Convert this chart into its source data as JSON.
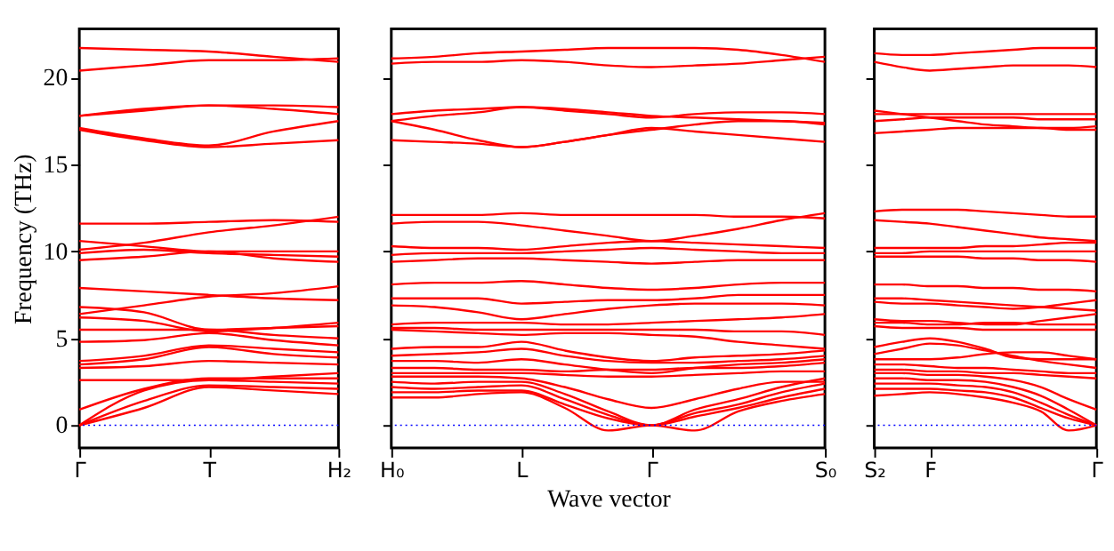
{
  "chart_data": [
    {
      "type": "line",
      "ylabel": "Frequency (THz)",
      "categories": [
        "Γ",
        null,
        "T",
        null,
        "H₂"
      ],
      "ylim": [
        -1.3,
        22.8
      ],
      "yticks": [
        0,
        5,
        10,
        15,
        20
      ],
      "grid": false,
      "legend": false,
      "line_style": "solid",
      "marker": "none",
      "ref_lines": [
        {
          "axis": "y",
          "value": 0,
          "color": "#0000ff",
          "line_style": "dotted"
        }
      ],
      "series": [
        {
          "color": "#ff0000",
          "values": [
            0,
            1.0,
            2.2,
            2.0,
            1.8
          ]
        },
        {
          "color": "#ff0000",
          "values": [
            0,
            1.4,
            2.3,
            2.2,
            2.1
          ]
        },
        {
          "color": "#ff0000",
          "values": [
            0,
            2.0,
            2.6,
            2.5,
            2.4
          ]
        },
        {
          "color": "#ff0000",
          "values": [
            0.9,
            2.1,
            2.7,
            2.7,
            2.7
          ]
        },
        {
          "color": "#ff0000",
          "values": [
            2.6,
            2.6,
            2.6,
            2.8,
            3.0
          ]
        },
        {
          "color": "#ff0000",
          "values": [
            3.3,
            3.4,
            3.7,
            3.6,
            3.5
          ]
        },
        {
          "color": "#ff0000",
          "values": [
            3.5,
            3.8,
            4.5,
            4.1,
            3.9
          ]
        },
        {
          "color": "#ff0000",
          "values": [
            3.7,
            4.0,
            4.6,
            4.4,
            4.2
          ]
        },
        {
          "color": "#ff0000",
          "values": [
            4.8,
            4.9,
            5.3,
            4.9,
            4.6
          ]
        },
        {
          "color": "#ff0000",
          "values": [
            5.5,
            5.5,
            5.5,
            5.2,
            5.0
          ]
        },
        {
          "color": "#ff0000",
          "values": [
            6.4,
            6.9,
            7.4,
            7.6,
            8.0
          ]
        },
        {
          "color": "#ff0000",
          "values": [
            6.8,
            6.5,
            5.5,
            5.6,
            5.7
          ]
        },
        {
          "color": "#ff0000",
          "values": [
            6.2,
            6.0,
            5.4,
            5.6,
            5.9
          ]
        },
        {
          "color": "#ff0000",
          "values": [
            7.9,
            7.7,
            7.5,
            7.3,
            7.2
          ]
        },
        {
          "color": "#ff0000",
          "values": [
            9.5,
            9.7,
            10.0,
            9.6,
            9.4
          ]
        },
        {
          "color": "#ff0000",
          "values": [
            10.1,
            10.5,
            11.1,
            11.5,
            12.0
          ]
        },
        {
          "color": "#ff0000",
          "values": [
            10.6,
            10.3,
            10.0,
            10.0,
            10.0
          ]
        },
        {
          "color": "#ff0000",
          "values": [
            9.9,
            10.1,
            9.9,
            9.8,
            9.7
          ]
        },
        {
          "color": "#ff0000",
          "values": [
            11.6,
            11.6,
            11.7,
            11.8,
            11.7
          ]
        },
        {
          "color": "#ff0000",
          "values": [
            17.0,
            16.4,
            16.0,
            16.2,
            16.4
          ]
        },
        {
          "color": "#ff0000",
          "values": [
            17.1,
            16.5,
            16.1,
            16.9,
            17.5
          ]
        },
        {
          "color": "#ff0000",
          "values": [
            17.8,
            18.1,
            18.4,
            18.2,
            17.9
          ]
        },
        {
          "color": "#ff0000",
          "values": [
            17.8,
            18.2,
            18.4,
            18.4,
            18.3
          ]
        },
        {
          "color": "#ff0000",
          "values": [
            20.4,
            20.7,
            21.0,
            21.0,
            21.1
          ]
        },
        {
          "color": "#ff0000",
          "values": [
            21.7,
            21.6,
            21.5,
            21.2,
            20.9
          ]
        }
      ]
    },
    {
      "type": "line",
      "xlabel": "Wave vector",
      "categories": [
        "H₀",
        null,
        null,
        "L",
        null,
        null,
        "Γ",
        null,
        null,
        null,
        "S₀"
      ],
      "ylim": [
        -1.3,
        22.8
      ],
      "yticks": [
        {
          "value": 0,
          "label": null
        },
        {
          "value": 5,
          "label": null
        },
        {
          "value": 10,
          "label": null
        },
        {
          "value": 15,
          "label": null
        },
        {
          "value": 20,
          "label": null
        }
      ],
      "tick_labels": "x",
      "grid": false,
      "legend": false,
      "line_style": "solid",
      "marker": "none",
      "ref_lines": [
        {
          "axis": "y",
          "value": 0,
          "color": "#0000ff",
          "line_style": "dotted"
        }
      ],
      "series": [
        {
          "color": "#ff0000",
          "values": [
            1.6,
            1.6,
            1.8,
            1.9,
            1.0,
            -0.3,
            0,
            -0.3,
            0.8,
            1.4,
            1.8
          ]
        },
        {
          "color": "#ff0000",
          "values": [
            1.9,
            1.9,
            2.0,
            2.0,
            1.2,
            0.4,
            0,
            0.5,
            1.0,
            1.6,
            2.1
          ]
        },
        {
          "color": "#ff0000",
          "values": [
            2.2,
            2.1,
            2.2,
            2.3,
            1.5,
            0.6,
            0,
            0.7,
            1.2,
            1.9,
            2.4
          ]
        },
        {
          "color": "#ff0000",
          "values": [
            2.5,
            2.4,
            2.5,
            2.5,
            1.8,
            0.8,
            0,
            0.9,
            1.5,
            2.2,
            2.7
          ]
        },
        {
          "color": "#ff0000",
          "values": [
            2.8,
            2.8,
            2.8,
            2.7,
            2.2,
            1.5,
            1.0,
            1.5,
            2.1,
            2.5,
            2.5
          ]
        },
        {
          "color": "#ff0000",
          "values": [
            3.0,
            3.0,
            3.0,
            3.0,
            2.9,
            2.8,
            2.8,
            2.9,
            3.0,
            3.1,
            3.1
          ]
        },
        {
          "color": "#ff0000",
          "values": [
            3.3,
            3.3,
            3.2,
            3.2,
            3.1,
            3.2,
            3.2,
            3.3,
            3.3,
            3.4,
            3.6
          ]
        },
        {
          "color": "#ff0000",
          "values": [
            3.7,
            3.7,
            3.6,
            3.8,
            3.5,
            3.2,
            3.0,
            3.3,
            3.5,
            3.6,
            3.8
          ]
        },
        {
          "color": "#ff0000",
          "values": [
            4.0,
            4.1,
            4.2,
            4.4,
            4.0,
            3.7,
            3.6,
            3.6,
            3.7,
            3.8,
            4.0
          ]
        },
        {
          "color": "#ff0000",
          "values": [
            4.4,
            4.5,
            4.5,
            4.8,
            4.3,
            3.9,
            3.7,
            3.9,
            4.0,
            4.1,
            4.3
          ]
        },
        {
          "color": "#ff0000",
          "values": [
            5.5,
            5.4,
            5.3,
            5.2,
            5.3,
            5.3,
            5.2,
            5.1,
            4.8,
            4.6,
            4.4
          ]
        },
        {
          "color": "#ff0000",
          "values": [
            5.6,
            5.6,
            5.5,
            5.5,
            5.5,
            5.5,
            5.5,
            5.5,
            5.4,
            5.4,
            5.2
          ]
        },
        {
          "color": "#ff0000",
          "values": [
            5.8,
            5.9,
            5.9,
            5.9,
            5.8,
            5.8,
            5.9,
            6.0,
            6.1,
            6.2,
            6.4
          ]
        },
        {
          "color": "#ff0000",
          "values": [
            6.9,
            6.8,
            6.5,
            6.1,
            6.4,
            6.7,
            6.9,
            7.0,
            7.0,
            7.0,
            6.9
          ]
        },
        {
          "color": "#ff0000",
          "values": [
            7.3,
            7.3,
            7.3,
            7.0,
            7.1,
            7.2,
            7.2,
            7.3,
            7.5,
            7.5,
            7.5
          ]
        },
        {
          "color": "#ff0000",
          "values": [
            8.1,
            8.2,
            8.2,
            8.3,
            8.1,
            7.9,
            7.8,
            7.9,
            8.1,
            8.2,
            8.2
          ]
        },
        {
          "color": "#ff0000",
          "values": [
            9.4,
            9.5,
            9.6,
            9.6,
            9.5,
            9.4,
            9.3,
            9.4,
            9.5,
            9.5,
            9.5
          ]
        },
        {
          "color": "#ff0000",
          "values": [
            9.8,
            9.9,
            9.9,
            9.9,
            10.0,
            10.1,
            10.2,
            10.1,
            10.0,
            9.9,
            9.9
          ]
        },
        {
          "color": "#ff0000",
          "values": [
            10.3,
            10.2,
            10.2,
            10.1,
            10.3,
            10.5,
            10.6,
            10.5,
            10.4,
            10.3,
            10.2
          ]
        },
        {
          "color": "#ff0000",
          "values": [
            11.6,
            11.7,
            11.7,
            11.5,
            11.2,
            10.9,
            10.6,
            10.9,
            11.3,
            11.8,
            12.2
          ]
        },
        {
          "color": "#ff0000",
          "values": [
            12.1,
            12.1,
            12.1,
            12.2,
            12.1,
            12.1,
            12.1,
            12.1,
            12.0,
            12.0,
            11.9
          ]
        },
        {
          "color": "#ff0000",
          "values": [
            16.4,
            16.3,
            16.2,
            16.0,
            16.3,
            16.7,
            17.0,
            17.3,
            17.5,
            17.5,
            17.3
          ]
        },
        {
          "color": "#ff0000",
          "values": [
            17.5,
            17.0,
            16.4,
            16.0,
            16.3,
            16.7,
            17.1,
            16.9,
            16.7,
            16.5,
            16.3
          ]
        },
        {
          "color": "#ff0000",
          "values": [
            17.5,
            17.8,
            18.0,
            18.3,
            18.2,
            18.0,
            17.8,
            17.7,
            17.6,
            17.5,
            17.4
          ]
        },
        {
          "color": "#ff0000",
          "values": [
            17.9,
            18.1,
            18.2,
            18.3,
            18.1,
            17.9,
            17.7,
            17.9,
            18.0,
            18.0,
            17.9
          ]
        },
        {
          "color": "#ff0000",
          "values": [
            20.8,
            20.9,
            20.9,
            21.0,
            20.9,
            20.7,
            20.6,
            20.7,
            20.8,
            21.0,
            21.2
          ]
        },
        {
          "color": "#ff0000",
          "values": [
            21.1,
            21.2,
            21.4,
            21.5,
            21.6,
            21.7,
            21.7,
            21.7,
            21.6,
            21.3,
            20.9
          ]
        }
      ]
    },
    {
      "type": "line",
      "categories": [
        "S₂",
        null,
        "F",
        null,
        null,
        null,
        null,
        null,
        "Γ"
      ],
      "ylim": [
        -1.3,
        22.8
      ],
      "yticks": [
        {
          "value": 0,
          "label": null
        },
        {
          "value": 5,
          "label": null
        },
        {
          "value": 10,
          "label": null
        },
        {
          "value": 15,
          "label": null
        },
        {
          "value": 20,
          "label": null
        }
      ],
      "tick_labels": "x",
      "grid": false,
      "legend": false,
      "line_style": "solid",
      "marker": "none",
      "ref_lines": [
        {
          "axis": "y",
          "value": 0,
          "color": "#0000ff",
          "line_style": "dotted"
        }
      ],
      "series": [
        {
          "color": "#ff0000",
          "values": [
            1.7,
            1.8,
            1.9,
            1.8,
            1.6,
            1.3,
            0.8,
            -0.3,
            0
          ]
        },
        {
          "color": "#ff0000",
          "values": [
            2.1,
            2.1,
            2.1,
            2.0,
            1.9,
            1.6,
            1.0,
            0.4,
            0
          ]
        },
        {
          "color": "#ff0000",
          "values": [
            2.4,
            2.4,
            2.4,
            2.3,
            2.2,
            1.9,
            1.3,
            0.6,
            0
          ]
        },
        {
          "color": "#ff0000",
          "values": [
            2.7,
            2.7,
            2.6,
            2.6,
            2.5,
            2.2,
            1.7,
            0.9,
            0
          ]
        },
        {
          "color": "#ff0000",
          "values": [
            3.0,
            3.0,
            2.9,
            2.9,
            2.8,
            2.6,
            2.2,
            1.5,
            0.9
          ]
        },
        {
          "color": "#ff0000",
          "values": [
            3.2,
            3.2,
            3.1,
            3.1,
            3.0,
            3.0,
            2.9,
            2.8,
            2.7
          ]
        },
        {
          "color": "#ff0000",
          "values": [
            3.5,
            3.5,
            3.4,
            3.3,
            3.3,
            3.2,
            3.1,
            3.0,
            3.0
          ]
        },
        {
          "color": "#ff0000",
          "values": [
            3.8,
            3.8,
            3.8,
            3.9,
            4.1,
            4.2,
            4.2,
            4.0,
            3.8
          ]
        },
        {
          "color": "#ff0000",
          "values": [
            4.1,
            4.4,
            4.7,
            4.6,
            4.3,
            4.0,
            3.7,
            3.5,
            3.3
          ]
        },
        {
          "color": "#ff0000",
          "values": [
            4.5,
            4.8,
            5.0,
            4.8,
            4.4,
            3.9,
            3.8,
            3.8,
            3.8
          ]
        },
        {
          "color": "#ff0000",
          "values": [
            5.7,
            5.6,
            5.6,
            5.6,
            5.5,
            5.5,
            5.5,
            5.5,
            5.5
          ]
        },
        {
          "color": "#ff0000",
          "values": [
            5.9,
            5.9,
            5.8,
            5.8,
            5.9,
            5.9,
            5.8,
            5.8,
            5.8
          ]
        },
        {
          "color": "#ff0000",
          "values": [
            6.1,
            6.0,
            6.0,
            5.9,
            5.8,
            5.8,
            6.0,
            6.2,
            6.4
          ]
        },
        {
          "color": "#ff0000",
          "values": [
            7.1,
            7.0,
            7.0,
            6.9,
            6.8,
            6.7,
            6.8,
            7.0,
            7.2
          ]
        },
        {
          "color": "#ff0000",
          "values": [
            7.3,
            7.3,
            7.2,
            7.1,
            7.0,
            6.9,
            6.8,
            6.7,
            6.6
          ]
        },
        {
          "color": "#ff0000",
          "values": [
            8.1,
            8.1,
            8.0,
            8.0,
            7.9,
            7.9,
            7.8,
            7.8,
            7.7
          ]
        },
        {
          "color": "#ff0000",
          "values": [
            9.7,
            9.7,
            9.7,
            9.7,
            9.6,
            9.6,
            9.5,
            9.5,
            9.4
          ]
        },
        {
          "color": "#ff0000",
          "values": [
            9.9,
            9.9,
            10.0,
            10.0,
            10.0,
            10.0,
            10.0,
            10.0,
            10.0
          ]
        },
        {
          "color": "#ff0000",
          "values": [
            10.2,
            10.2,
            10.2,
            10.2,
            10.3,
            10.3,
            10.4,
            10.5,
            10.5
          ]
        },
        {
          "color": "#ff0000",
          "values": [
            11.8,
            11.7,
            11.6,
            11.4,
            11.2,
            11.0,
            10.8,
            10.7,
            10.6
          ]
        },
        {
          "color": "#ff0000",
          "values": [
            12.3,
            12.4,
            12.4,
            12.4,
            12.3,
            12.2,
            12.1,
            12.0,
            12.0
          ]
        },
        {
          "color": "#ff0000",
          "values": [
            16.8,
            16.9,
            17.0,
            17.1,
            17.1,
            17.1,
            17.1,
            17.0,
            17.0
          ]
        },
        {
          "color": "#ff0000",
          "values": [
            17.5,
            17.6,
            17.7,
            17.7,
            17.7,
            17.7,
            17.6,
            17.6,
            17.6
          ]
        },
        {
          "color": "#ff0000",
          "values": [
            17.9,
            17.9,
            17.9,
            17.9,
            17.9,
            17.9,
            17.9,
            17.9,
            17.9
          ]
        },
        {
          "color": "#ff0000",
          "values": [
            18.1,
            17.9,
            17.7,
            17.5,
            17.3,
            17.2,
            17.1,
            17.1,
            17.2
          ]
        },
        {
          "color": "#ff0000",
          "values": [
            20.9,
            20.6,
            20.4,
            20.5,
            20.6,
            20.7,
            20.7,
            20.7,
            20.6
          ]
        },
        {
          "color": "#ff0000",
          "values": [
            21.4,
            21.3,
            21.3,
            21.4,
            21.5,
            21.6,
            21.7,
            21.7,
            21.7
          ]
        }
      ]
    }
  ]
}
